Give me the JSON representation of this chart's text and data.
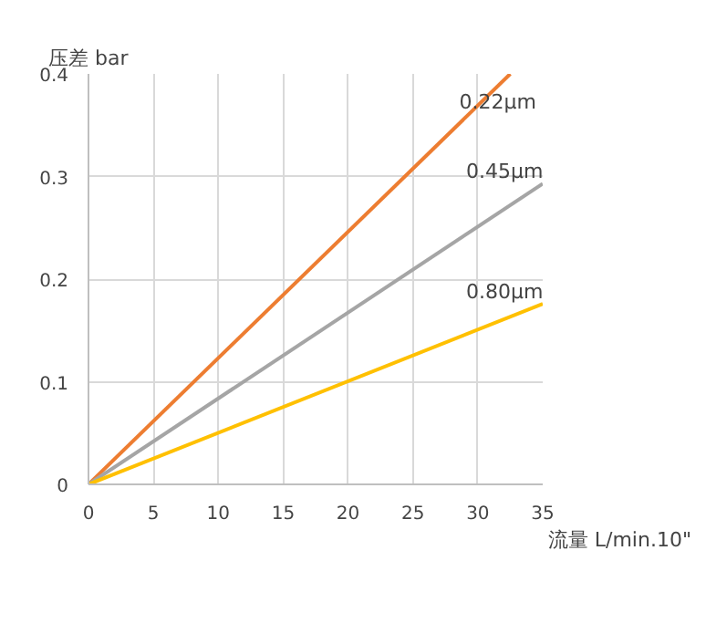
{
  "chart_data": {
    "type": "line",
    "xlabel": "流量  L/min.10\"",
    "ylabel": "压差 bar",
    "xlim": [
      0,
      35
    ],
    "ylim": [
      0,
      0.4
    ],
    "xticks": [
      0,
      5,
      10,
      15,
      20,
      25,
      30,
      35
    ],
    "yticks": [
      0,
      0.1,
      0.2,
      0.3,
      0.4
    ],
    "grid": true,
    "series": [
      {
        "name": "0.22μm",
        "color": "#ed7d31",
        "x": [
          0,
          32.5
        ],
        "values": [
          0,
          0.4
        ]
      },
      {
        "name": "0.45μm",
        "color": "#a5a5a5",
        "x": [
          0,
          35
        ],
        "values": [
          0,
          0.293
        ]
      },
      {
        "name": "0.80μm",
        "color": "#ffc000",
        "x": [
          0,
          35
        ],
        "values": [
          0,
          0.176
        ]
      }
    ]
  }
}
